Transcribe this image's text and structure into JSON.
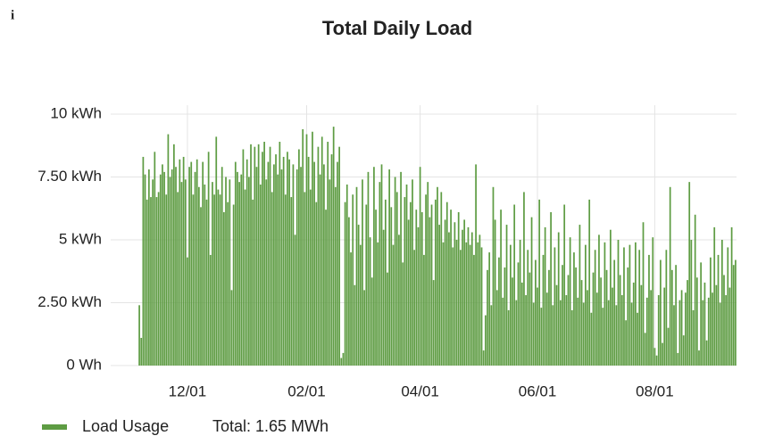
{
  "info": "i",
  "chart_data": {
    "type": "bar",
    "title": "Total Daily Load",
    "series": [
      {
        "name": "Load Usage",
        "color": "#5e9c43",
        "values": [
          2.4,
          1.1,
          8.3,
          7.6,
          6.6,
          7.8,
          6.7,
          7.4,
          8.5,
          6.7,
          6.9,
          7.6,
          8.0,
          7.7,
          6.8,
          9.2,
          7.5,
          7.8,
          8.8,
          7.9,
          6.9,
          8.2,
          7.3,
          8.3,
          7.4,
          4.3,
          7.9,
          8.1,
          6.8,
          7.7,
          8.2,
          7.1,
          6.3,
          8.1,
          7.2,
          6.6,
          8.5,
          4.4,
          7.3,
          6.8,
          9.1,
          7.0,
          6.8,
          7.9,
          6.1,
          7.5,
          6.5,
          7.4,
          3.0,
          6.4,
          8.1,
          7.7,
          7.3,
          7.6,
          8.6,
          7.0,
          8.2,
          7.5,
          8.8,
          6.6,
          8.7,
          7.9,
          8.8,
          7.2,
          8.5,
          8.9,
          7.4,
          8.1,
          8.7,
          6.9,
          8.0,
          8.4,
          7.6,
          8.9,
          7.8,
          8.3,
          6.8,
          8.5,
          8.2,
          6.7,
          8.0,
          5.2,
          7.8,
          8.6,
          7.9,
          9.4,
          6.9,
          9.2,
          8.3,
          7.0,
          9.3,
          8.1,
          6.5,
          8.7,
          7.6,
          9.1,
          8.0,
          6.2,
          8.9,
          7.4,
          8.4,
          9.5,
          7.1,
          8.1,
          8.7,
          0.3,
          0.5,
          6.5,
          7.2,
          5.9,
          4.5,
          6.8,
          3.2,
          7.1,
          5.6,
          4.8,
          7.4,
          3.0,
          6.4,
          7.7,
          5.1,
          3.5,
          7.9,
          6.2,
          4.9,
          7.3,
          8.0,
          5.4,
          6.6,
          3.7,
          7.8,
          6.3,
          4.8,
          7.5,
          6.9,
          5.2,
          7.7,
          4.1,
          6.7,
          7.2,
          5.8,
          6.5,
          7.4,
          4.6,
          6.2,
          5.5,
          7.9,
          6.1,
          4.4,
          6.8,
          7.3,
          5.9,
          6.4,
          3.4,
          6.6,
          7.1,
          5.6,
          6.9,
          4.9,
          5.8,
          6.5,
          5.3,
          6.2,
          4.7,
          5.7,
          5.0,
          6.1,
          4.6,
          5.4,
          5.8,
          4.9,
          5.5,
          4.8,
          5.3,
          4.4,
          8.0,
          4.9,
          5.2,
          4.7,
          0.6,
          2.0,
          3.8,
          4.5,
          2.4,
          7.1,
          5.8,
          3.0,
          4.3,
          6.2,
          2.7,
          3.9,
          5.6,
          2.2,
          4.8,
          3.5,
          6.4,
          2.6,
          4.1,
          5.0,
          3.3,
          6.9,
          2.8,
          4.6,
          3.7,
          5.9,
          2.5,
          4.2,
          3.1,
          6.6,
          2.3,
          4.4,
          5.5,
          2.9,
          3.8,
          6.1,
          2.4,
          4.7,
          3.2,
          5.3,
          2.6,
          4.0,
          6.4,
          2.8,
          3.6,
          5.1,
          2.2,
          4.5,
          3.9,
          2.7,
          5.6,
          3.4,
          2.5,
          4.8,
          3.0,
          6.6,
          2.1,
          3.7,
          4.6,
          2.9,
          5.2,
          3.5,
          2.3,
          4.9,
          3.8,
          2.6,
          5.4,
          3.1,
          4.2,
          2.4,
          5.0,
          3.6,
          2.8,
          4.7,
          1.8,
          3.9,
          4.8,
          2.5,
          3.3,
          4.9,
          2.1,
          4.6,
          3.2,
          5.7,
          1.3,
          2.7,
          4.4,
          3.0,
          5.1,
          0.7,
          0.4,
          2.8,
          4.2,
          0.9,
          3.1,
          4.6,
          1.5,
          7.1,
          3.8,
          2.4,
          4.0,
          0.5,
          2.6,
          3.0,
          1.2,
          2.9,
          3.4,
          7.3,
          5.0,
          2.2,
          6.0,
          3.5,
          0.6,
          4.1,
          2.6,
          3.3,
          1.0,
          2.7,
          4.3,
          2.9,
          5.5,
          3.2,
          4.4,
          2.5,
          5.0,
          3.6,
          2.8,
          4.7,
          3.1,
          5.5,
          4.0,
          4.2
        ]
      }
    ],
    "categories": [
      null,
      null,
      null,
      null,
      null,
      null,
      null,
      null,
      null,
      null,
      null,
      null,
      null,
      null,
      null,
      null,
      null,
      null,
      null,
      null,
      null,
      null,
      null,
      null,
      null,
      "12/01",
      null,
      null,
      null,
      null,
      null,
      null,
      null,
      null,
      null,
      null,
      null,
      null,
      null,
      null,
      null,
      null,
      null,
      null,
      null,
      null,
      null,
      null,
      null,
      null,
      null,
      null,
      null,
      null,
      null,
      null,
      null,
      null,
      null,
      null,
      null,
      null,
      null,
      null,
      null,
      null,
      null,
      null,
      null,
      null,
      null,
      null,
      null,
      null,
      null,
      null,
      null,
      null,
      null,
      null,
      null,
      null,
      null,
      null,
      null,
      null,
      null,
      "02/01",
      null,
      null,
      null,
      null,
      null,
      null,
      null,
      null,
      null,
      null,
      null,
      null,
      null,
      null,
      null,
      null,
      null,
      null,
      null,
      null,
      null,
      null,
      null,
      null,
      null,
      null,
      null,
      null,
      null,
      null,
      null,
      null,
      null,
      null,
      null,
      null,
      null,
      null,
      null,
      null,
      null,
      null,
      null,
      null,
      null,
      null,
      null,
      null,
      null,
      null,
      null,
      null,
      null,
      null,
      null,
      null,
      null,
      null,
      "04/01",
      null,
      null,
      null,
      null,
      null,
      null,
      null,
      null,
      null,
      null,
      null,
      null,
      null,
      null,
      null,
      null,
      null,
      null,
      null,
      null,
      null,
      null,
      null,
      null,
      null,
      null,
      null,
      null,
      null,
      null,
      null,
      null,
      null,
      null,
      null,
      null,
      null,
      null,
      null,
      null,
      null,
      null,
      null,
      null,
      null,
      null,
      null,
      null,
      null,
      null,
      null,
      null,
      null,
      null,
      null,
      null,
      null,
      null,
      null,
      null,
      "06/01",
      null,
      null,
      null,
      null,
      null,
      null,
      null,
      null,
      null,
      null,
      null,
      null,
      null,
      null,
      null,
      null,
      null,
      null,
      null,
      null,
      null,
      null,
      null,
      null,
      null,
      null,
      null,
      null,
      null,
      null,
      null,
      null,
      null,
      null,
      null,
      null,
      null,
      null,
      null,
      null,
      null,
      null,
      null,
      null,
      null,
      null,
      null,
      null,
      null,
      null,
      null,
      null,
      null,
      null,
      null,
      null,
      null,
      null,
      null,
      null,
      "08/01",
      null,
      null,
      null,
      null,
      null,
      null,
      null,
      null,
      null,
      null,
      null,
      null,
      null,
      null,
      null,
      null,
      null,
      null,
      null,
      null,
      null,
      null,
      null,
      null,
      null,
      null,
      null,
      null,
      null,
      null,
      null,
      null,
      null,
      null,
      null,
      null,
      null,
      null,
      null,
      null,
      null,
      null
    ],
    "ylim": [
      0,
      10
    ],
    "yticks": [
      {
        "value": 0,
        "label": "0 Wh"
      },
      {
        "value": 2.5,
        "label": "2.50 kWh"
      },
      {
        "value": 5,
        "label": "5 kWh"
      },
      {
        "value": 7.5,
        "label": "7.50 kWh"
      },
      {
        "value": 10,
        "label": "10 kWh"
      }
    ],
    "grid": true,
    "legend_total": "Total: 1.65 MWh",
    "legend": "bottom-left"
  }
}
